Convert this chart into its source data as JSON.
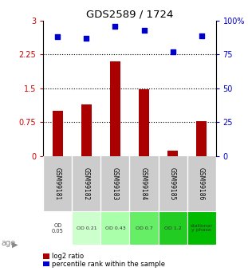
{
  "title": "GDS2589 / 1724",
  "samples": [
    "GSM99181",
    "GSM99182",
    "GSM99183",
    "GSM99184",
    "GSM99185",
    "GSM99186"
  ],
  "log2_ratio": [
    1.0,
    1.15,
    2.1,
    1.48,
    0.12,
    0.78
  ],
  "percentile_rank": [
    88,
    87,
    96,
    93,
    77,
    89
  ],
  "bar_color": "#aa0000",
  "dot_color": "#0000cc",
  "left_ylim": [
    0,
    3
  ],
  "right_ylim": [
    0,
    100
  ],
  "left_yticks": [
    0,
    0.75,
    1.5,
    2.25,
    3
  ],
  "right_yticks": [
    0,
    25,
    50,
    75,
    100
  ],
  "left_yticklabels": [
    "0",
    "0.75",
    "1.5",
    "2.25",
    "3"
  ],
  "right_yticklabels": [
    "0",
    "25",
    "50",
    "75",
    "100%"
  ],
  "hlines": [
    0.75,
    1.5,
    2.25
  ],
  "age_labels": [
    "OD\n0.05",
    "OD 0.21",
    "OD 0.43",
    "OD 0.7",
    "OD 1.2",
    "stationar\ny phase"
  ],
  "age_bg_colors": [
    "#ffffff",
    "#ccffcc",
    "#aaffaa",
    "#66ee66",
    "#22cc22",
    "#00bb00"
  ],
  "sample_bg_color": "#cccccc",
  "left_tick_color": "#cc0000",
  "right_tick_color": "#0000cc",
  "legend_bar_label": "log2 ratio",
  "legend_dot_label": "percentile rank within the sample",
  "age_text_color": "#333333",
  "arrow_color": "#999999"
}
